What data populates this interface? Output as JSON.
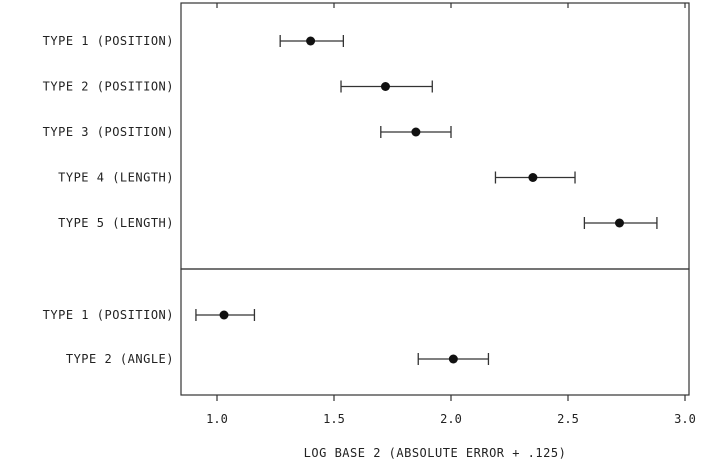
{
  "chart_data": {
    "type": "scatter",
    "subtype": "dot-plot-with-error-bars",
    "xlabel": "LOG BASE 2 (ABSOLUTE ERROR + .125)",
    "xlim": [
      0.85,
      3.0
    ],
    "xticks": [
      1.0,
      1.5,
      2.0,
      2.5,
      3.0
    ],
    "xtick_labels": [
      "1.0",
      "1.5",
      "2.0",
      "2.5",
      "3.0"
    ],
    "grid": false,
    "panels": [
      {
        "rows": [
          {
            "label": "TYPE 1 (POSITION)",
            "value": 1.4,
            "low": 1.27,
            "high": 1.54
          },
          {
            "label": "TYPE 2 (POSITION)",
            "value": 1.72,
            "low": 1.53,
            "high": 1.92
          },
          {
            "label": "TYPE 3 (POSITION)",
            "value": 1.85,
            "low": 1.7,
            "high": 2.0
          },
          {
            "label": "TYPE 4 (LENGTH)",
            "value": 2.35,
            "low": 2.19,
            "high": 2.53
          },
          {
            "label": "TYPE 5 (LENGTH)",
            "value": 2.72,
            "low": 2.57,
            "high": 2.88
          }
        ]
      },
      {
        "rows": [
          {
            "label": "TYPE 1 (POSITION)",
            "value": 1.03,
            "low": 0.91,
            "high": 1.16
          },
          {
            "label": "TYPE 2 (ANGLE)",
            "value": 2.01,
            "low": 1.86,
            "high": 2.16
          }
        ]
      }
    ]
  }
}
